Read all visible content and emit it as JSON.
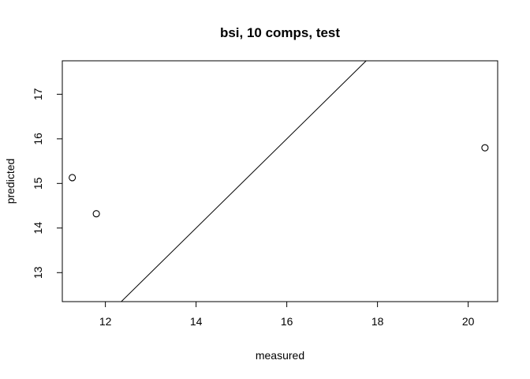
{
  "chart_data": {
    "type": "scatter",
    "title": "bsi, 10 comps, test",
    "xlabel": "measured",
    "ylabel": "predicted",
    "xlim": [
      11.05,
      20.65
    ],
    "ylim": [
      12.35,
      17.75
    ],
    "xticks": [
      12,
      14,
      16,
      18,
      20
    ],
    "yticks": [
      13,
      14,
      15,
      16,
      17
    ],
    "grid": false,
    "reference_line": {
      "intercept": 0,
      "slope": 1
    },
    "points": [
      {
        "x": 11.27,
        "y": 15.13
      },
      {
        "x": 11.8,
        "y": 14.32
      },
      {
        "x": 20.37,
        "y": 15.8
      }
    ]
  }
}
